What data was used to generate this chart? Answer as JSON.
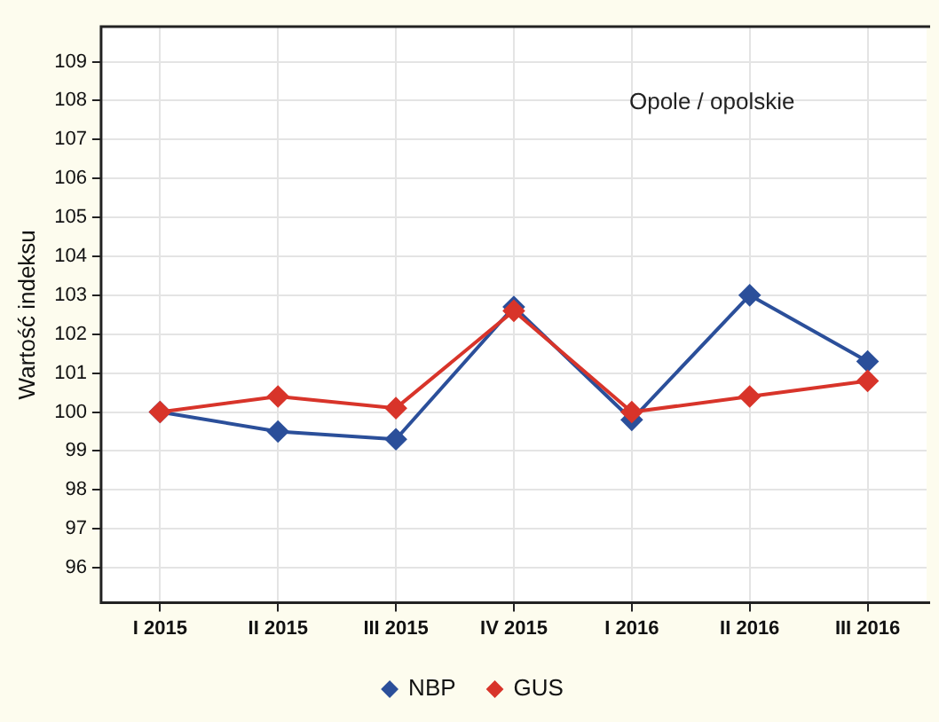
{
  "chart_data": {
    "type": "line",
    "ylabel": "Wartość indeksu",
    "annotations": [
      "Opole / opolskie"
    ],
    "categories": [
      "I 2015",
      "II 2015",
      "III 2015",
      "IV 2015",
      "I 2016",
      "II 2016",
      "III 2016"
    ],
    "series": [
      {
        "name": "NBP",
        "color": "#2b4f9a",
        "values": [
          100,
          99.5,
          99.3,
          102.7,
          99.8,
          103.0,
          101.3
        ]
      },
      {
        "name": "GUS",
        "color": "#d8342a",
        "values": [
          100,
          100.4,
          100.1,
          102.6,
          100.0,
          100.4,
          100.8
        ]
      }
    ],
    "ylim": [
      95.1,
      109.9
    ],
    "yticks": [
      96,
      97,
      98,
      99,
      100,
      101,
      102,
      103,
      104,
      105,
      106,
      107,
      108,
      109
    ],
    "grid": true,
    "legend": "bottom",
    "marker": "diamond",
    "line_style": "solid"
  }
}
